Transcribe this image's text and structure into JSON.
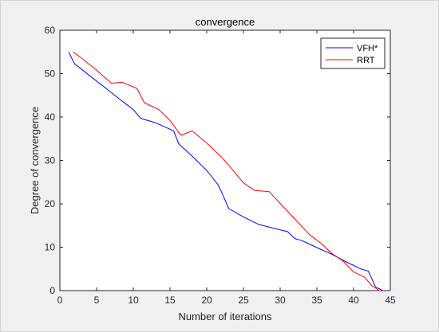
{
  "chart_data": {
    "type": "line",
    "title": "convergence",
    "xlabel": "Number of iterations",
    "ylabel": "Degree of convergence",
    "xlim": [
      0,
      45
    ],
    "ylim": [
      0,
      60
    ],
    "xticks": [
      0,
      5,
      10,
      15,
      20,
      25,
      30,
      35,
      40,
      45
    ],
    "yticks": [
      0,
      10,
      20,
      30,
      40,
      50,
      60
    ],
    "grid": false,
    "legend_position": "top-right",
    "series": [
      {
        "name": "VFH*",
        "color": "#0000ff",
        "points": [
          [
            1.2,
            55.0
          ],
          [
            2.0,
            52.3
          ],
          [
            4.0,
            49.6
          ],
          [
            6.0,
            47.0
          ],
          [
            8.0,
            44.3
          ],
          [
            10.0,
            41.7
          ],
          [
            11.0,
            39.7
          ],
          [
            13.0,
            38.7
          ],
          [
            15.0,
            37.2
          ],
          [
            15.5,
            36.8
          ],
          [
            16.2,
            33.8
          ],
          [
            18.0,
            31.0
          ],
          [
            20.0,
            27.7
          ],
          [
            21.5,
            24.5
          ],
          [
            22.0,
            22.8
          ],
          [
            23.0,
            18.9
          ],
          [
            25.0,
            17.0
          ],
          [
            27.0,
            15.3
          ],
          [
            29.0,
            14.4
          ],
          [
            31.0,
            13.6
          ],
          [
            32.0,
            12.0
          ],
          [
            33.0,
            11.5
          ],
          [
            35.0,
            9.9
          ],
          [
            37.0,
            8.4
          ],
          [
            39.0,
            6.6
          ],
          [
            41.0,
            5.0
          ],
          [
            42.0,
            4.5
          ],
          [
            43.0,
            0.8
          ],
          [
            44.0,
            0.0
          ],
          [
            44.6,
            0.0
          ]
        ]
      },
      {
        "name": "RRT",
        "color": "#ff0000",
        "points": [
          [
            1.8,
            55.0
          ],
          [
            3.0,
            53.5
          ],
          [
            5.0,
            50.8
          ],
          [
            7.0,
            47.8
          ],
          [
            8.5,
            48.0
          ],
          [
            10.5,
            46.6
          ],
          [
            11.5,
            43.3
          ],
          [
            13.5,
            41.7
          ],
          [
            15.0,
            39.2
          ],
          [
            16.5,
            35.8
          ],
          [
            18.0,
            36.8
          ],
          [
            20.0,
            34.0
          ],
          [
            22.0,
            30.8
          ],
          [
            23.5,
            27.9
          ],
          [
            25.0,
            24.8
          ],
          [
            26.5,
            23.1
          ],
          [
            28.5,
            22.8
          ],
          [
            30.0,
            20.1
          ],
          [
            32.0,
            16.5
          ],
          [
            34.0,
            12.9
          ],
          [
            35.5,
            11.0
          ],
          [
            37.0,
            8.6
          ],
          [
            38.5,
            6.9
          ],
          [
            40.0,
            4.3
          ],
          [
            41.5,
            3.1
          ],
          [
            42.5,
            1.1
          ],
          [
            43.5,
            0.0
          ],
          [
            44.2,
            0.0
          ]
        ]
      }
    ]
  }
}
